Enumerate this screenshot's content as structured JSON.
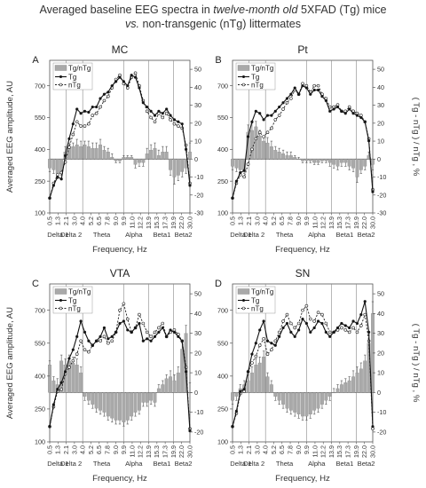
{
  "figure": {
    "title_line1_a": "Averaged baseline EEG spectra in ",
    "title_line1_b": "twelve-month old",
    "title_line1_c": " 5XFAD (Tg) mice",
    "title_line2_a": "vs.",
    "title_line2_b": " non-transgenic (nTg) littermates",
    "left_ylabel": "Averaged EEG amplitude, AU",
    "right_ylabel": "( Tg - nTg ) / nTg , %",
    "xlabel": "Frequency, Hz"
  },
  "chart_data": [
    {
      "type": "line",
      "panel": "A",
      "title": "MC",
      "x_ticks": [
        "0.5",
        "1.3",
        "2.1",
        "3.0",
        "4.0",
        "5.2",
        "6.5",
        "7.8",
        "9.0",
        "9.9",
        "11.0",
        "12.2",
        "13.9",
        "15.3",
        "17.3",
        "19.9",
        "22.0",
        "30.0"
      ],
      "bands": [
        "Delta 1",
        "Delta 2",
        "Theta",
        "Alpha",
        "Beta1",
        "Beta2"
      ],
      "left_ticks": [
        "100",
        "250",
        "400",
        "550",
        "700"
      ],
      "right_ticks": [
        "-30",
        "-20",
        "-10",
        "0",
        "10",
        "20",
        "30",
        "40",
        "50"
      ],
      "ylim_left": [
        100,
        820
      ],
      "ylim_right": [
        -30,
        55
      ],
      "legend": [
        "Tg/nTg",
        "Tg",
        "nTg"
      ],
      "series": [
        {
          "name": "Tg",
          "values": [
            170,
            230,
            270,
            260,
            370,
            450,
            520,
            590,
            570,
            580,
            575,
            600,
            600,
            640,
            660,
            670,
            700,
            720,
            740,
            720,
            700,
            750,
            740,
            690,
            620,
            600,
            580,
            560,
            580,
            570,
            590,
            560,
            540,
            530,
            520,
            400,
            230
          ]
        },
        {
          "name": "nTg",
          "values": [
            170,
            240,
            280,
            290,
            340,
            410,
            470,
            530,
            510,
            510,
            520,
            560,
            570,
            600,
            630,
            650,
            690,
            730,
            750,
            710,
            690,
            740,
            760,
            700,
            630,
            580,
            550,
            530,
            570,
            550,
            570,
            540,
            520,
            510,
            500,
            420,
            240
          ]
        },
        {
          "name": "Tg/nTg",
          "values": [
            -5,
            -6,
            -8,
            -7,
            4,
            6,
            7,
            8,
            7,
            8,
            7,
            6,
            6,
            8,
            5,
            4,
            1,
            -1,
            -1,
            1,
            1,
            1,
            -3,
            -2,
            -2,
            3,
            5,
            6,
            2,
            4,
            4,
            -6,
            -10,
            -9,
            -7,
            -5,
            4
          ]
        }
      ],
      "errors": [
        2,
        2,
        3,
        2,
        3,
        3,
        2,
        3,
        3,
        2,
        3,
        3,
        3,
        3,
        2,
        2,
        2,
        1,
        1,
        1,
        1,
        1,
        2,
        2,
        2,
        3,
        3,
        3,
        3,
        3,
        3,
        3,
        4,
        3,
        3,
        3,
        5
      ]
    },
    {
      "type": "line",
      "panel": "B",
      "title": "Pt",
      "x_ticks": [
        "0.5",
        "1.3",
        "2.1",
        "3.0",
        "4.0",
        "5.2",
        "6.5",
        "7.8",
        "9.0",
        "9.9",
        "11.0",
        "12.2",
        "13.9",
        "15.3",
        "17.3",
        "19.9",
        "22.0",
        "30.0"
      ],
      "bands": [
        "Delta 1",
        "Delta 2",
        "Theta",
        "Alpha",
        "Beta1",
        "Beta2"
      ],
      "left_ticks": [
        "100",
        "250",
        "400",
        "550",
        "700"
      ],
      "right_ticks": [
        "-30",
        "-20",
        "-10",
        "0",
        "10",
        "20",
        "30",
        "40",
        "50"
      ],
      "ylim_left": [
        100,
        820
      ],
      "ylim_right": [
        -30,
        55
      ],
      "legend": [
        "Tg/nTg",
        "Tg",
        "nTg"
      ],
      "series": [
        {
          "name": "Tg",
          "values": [
            170,
            250,
            290,
            300,
            460,
            530,
            580,
            570,
            540,
            560,
            560,
            580,
            600,
            620,
            640,
            660,
            690,
            660,
            700,
            690,
            660,
            680,
            680,
            650,
            630,
            580,
            590,
            600,
            580,
            570,
            590,
            570,
            560,
            550,
            530,
            440,
            200
          ]
        },
        {
          "name": "nTg",
          "values": [
            170,
            240,
            280,
            270,
            330,
            400,
            450,
            480,
            460,
            480,
            500,
            540,
            560,
            590,
            620,
            640,
            680,
            660,
            710,
            700,
            670,
            700,
            700,
            660,
            640,
            600,
            600,
            610,
            580,
            580,
            600,
            580,
            570,
            560,
            530,
            450,
            210
          ]
        },
        {
          "name": "Tg/nTg",
          "values": [
            -4,
            -5,
            -6,
            -6,
            15,
            16,
            18,
            13,
            10,
            9,
            7,
            5,
            4,
            3,
            2,
            2,
            1,
            0,
            -1,
            -1,
            -1,
            -2,
            -2,
            -1,
            -1,
            -2,
            -3,
            -4,
            -2,
            -2,
            -4,
            -5,
            -10,
            -6,
            -4,
            2,
            -3
          ]
        }
      ],
      "errors": [
        2,
        2,
        3,
        2,
        4,
        4,
        3,
        3,
        3,
        3,
        3,
        2,
        2,
        2,
        2,
        2,
        1,
        1,
        1,
        1,
        1,
        1,
        1,
        1,
        1,
        2,
        2,
        2,
        2,
        2,
        2,
        2,
        3,
        2,
        2,
        2,
        3
      ]
    },
    {
      "type": "line",
      "panel": "C",
      "title": "VTA",
      "x_ticks": [
        "0.5",
        "1.3",
        "2.1",
        "3.0",
        "4.0",
        "5.2",
        "6.5",
        "7.8",
        "9.0",
        "9.9",
        "11.0",
        "12.2",
        "13.9",
        "15.3",
        "17.3",
        "19.9",
        "22.0",
        "30.0"
      ],
      "bands": [
        "Delta 1",
        "Delta 2",
        "Theta",
        "Alpha",
        "Beta1",
        "Beta2"
      ],
      "left_ticks": [
        "100",
        "250",
        "400",
        "550",
        "700"
      ],
      "right_ticks": [
        "-20",
        "-10",
        "0",
        "10",
        "20",
        "30",
        "40",
        "50"
      ],
      "ylim_left": [
        100,
        820
      ],
      "ylim_right": [
        -25,
        55
      ],
      "legend": [
        "Tg/nTg",
        "Tg",
        "nTg"
      ],
      "series": [
        {
          "name": "Tg",
          "values": [
            170,
            270,
            340,
            370,
            420,
            480,
            520,
            580,
            650,
            600,
            560,
            540,
            560,
            580,
            620,
            570,
            580,
            600,
            640,
            650,
            610,
            600,
            620,
            640,
            560,
            570,
            560,
            580,
            600,
            620,
            580,
            610,
            600,
            580,
            560,
            420,
            150
          ]
        },
        {
          "name": "nTg",
          "values": [
            170,
            260,
            330,
            340,
            410,
            440,
            470,
            500,
            560,
            520,
            510,
            540,
            560,
            560,
            580,
            550,
            560,
            600,
            700,
            730,
            660,
            600,
            620,
            680,
            640,
            600,
            580,
            600,
            620,
            640,
            580,
            600,
            610,
            590,
            560,
            440,
            160
          ]
        },
        {
          "name": "Tg/nTg",
          "values": [
            14,
            6,
            4,
            16,
            14,
            16,
            15,
            14,
            10,
            -2,
            -4,
            -6,
            -8,
            -9,
            -10,
            -12,
            -13,
            -14,
            -14,
            -15,
            -14,
            -12,
            -10,
            -9,
            -5,
            -5,
            -4,
            -5,
            2,
            4,
            7,
            8,
            6,
            10,
            22,
            30,
            0
          ]
        }
      ],
      "errors": [
        2,
        2,
        3,
        3,
        3,
        3,
        3,
        3,
        3,
        2,
        2,
        2,
        2,
        2,
        2,
        2,
        2,
        2,
        2,
        2,
        2,
        2,
        2,
        2,
        2,
        2,
        2,
        2,
        2,
        2,
        2,
        3,
        3,
        3,
        3,
        4,
        5
      ]
    },
    {
      "type": "line",
      "panel": "D",
      "title": "SN",
      "x_ticks": [
        "0.5",
        "1.3",
        "2.1",
        "3.0",
        "4.0",
        "5.2",
        "6.5",
        "7.8",
        "9.0",
        "9.9",
        "11.0",
        "12.2",
        "13.9",
        "15.3",
        "17.3",
        "19.9",
        "22.0",
        "30.0"
      ],
      "bands": [
        "Delta 1",
        "Delta 2",
        "Theta",
        "Alpha",
        "Beta1",
        "Beta2"
      ],
      "left_ticks": [
        "100",
        "250",
        "400",
        "550",
        "700"
      ],
      "right_ticks": [
        "-20",
        "-10",
        "0",
        "10",
        "20",
        "30",
        "40",
        "50"
      ],
      "ylim_left": [
        100,
        820
      ],
      "ylim_right": [
        -25,
        55
      ],
      "legend": [
        "Tg/nTg",
        "Tg",
        "nTg"
      ],
      "series": [
        {
          "name": "Tg",
          "values": [
            170,
            240,
            330,
            340,
            420,
            500,
            550,
            610,
            650,
            560,
            550,
            540,
            580,
            620,
            640,
            600,
            580,
            610,
            660,
            640,
            600,
            620,
            650,
            640,
            600,
            580,
            600,
            620,
            640,
            630,
            620,
            650,
            640,
            680,
            740,
            600,
            170
          ]
        },
        {
          "name": "nTg",
          "values": [
            170,
            230,
            320,
            330,
            420,
            460,
            490,
            540,
            570,
            500,
            520,
            560,
            600,
            650,
            680,
            640,
            620,
            640,
            700,
            720,
            660,
            650,
            690,
            680,
            640,
            600,
            600,
            610,
            620,
            610,
            600,
            620,
            600,
            630,
            680,
            560,
            160
          ]
        },
        {
          "name": "Tg/nTg",
          "values": [
            -4,
            -2,
            2,
            4,
            6,
            10,
            14,
            15,
            18,
            8,
            4,
            -2,
            -4,
            -6,
            -8,
            -9,
            -10,
            -11,
            -12,
            -12,
            -11,
            -9,
            -8,
            -6,
            -4,
            -2,
            0,
            2,
            4,
            5,
            6,
            8,
            10,
            12,
            16,
            25,
            40
          ]
        }
      ],
      "errors": [
        2,
        2,
        2,
        2,
        3,
        3,
        3,
        3,
        3,
        2,
        2,
        2,
        2,
        2,
        2,
        2,
        2,
        2,
        2,
        2,
        2,
        2,
        2,
        2,
        2,
        2,
        2,
        2,
        2,
        2,
        2,
        3,
        3,
        3,
        3,
        4,
        6
      ]
    }
  ]
}
